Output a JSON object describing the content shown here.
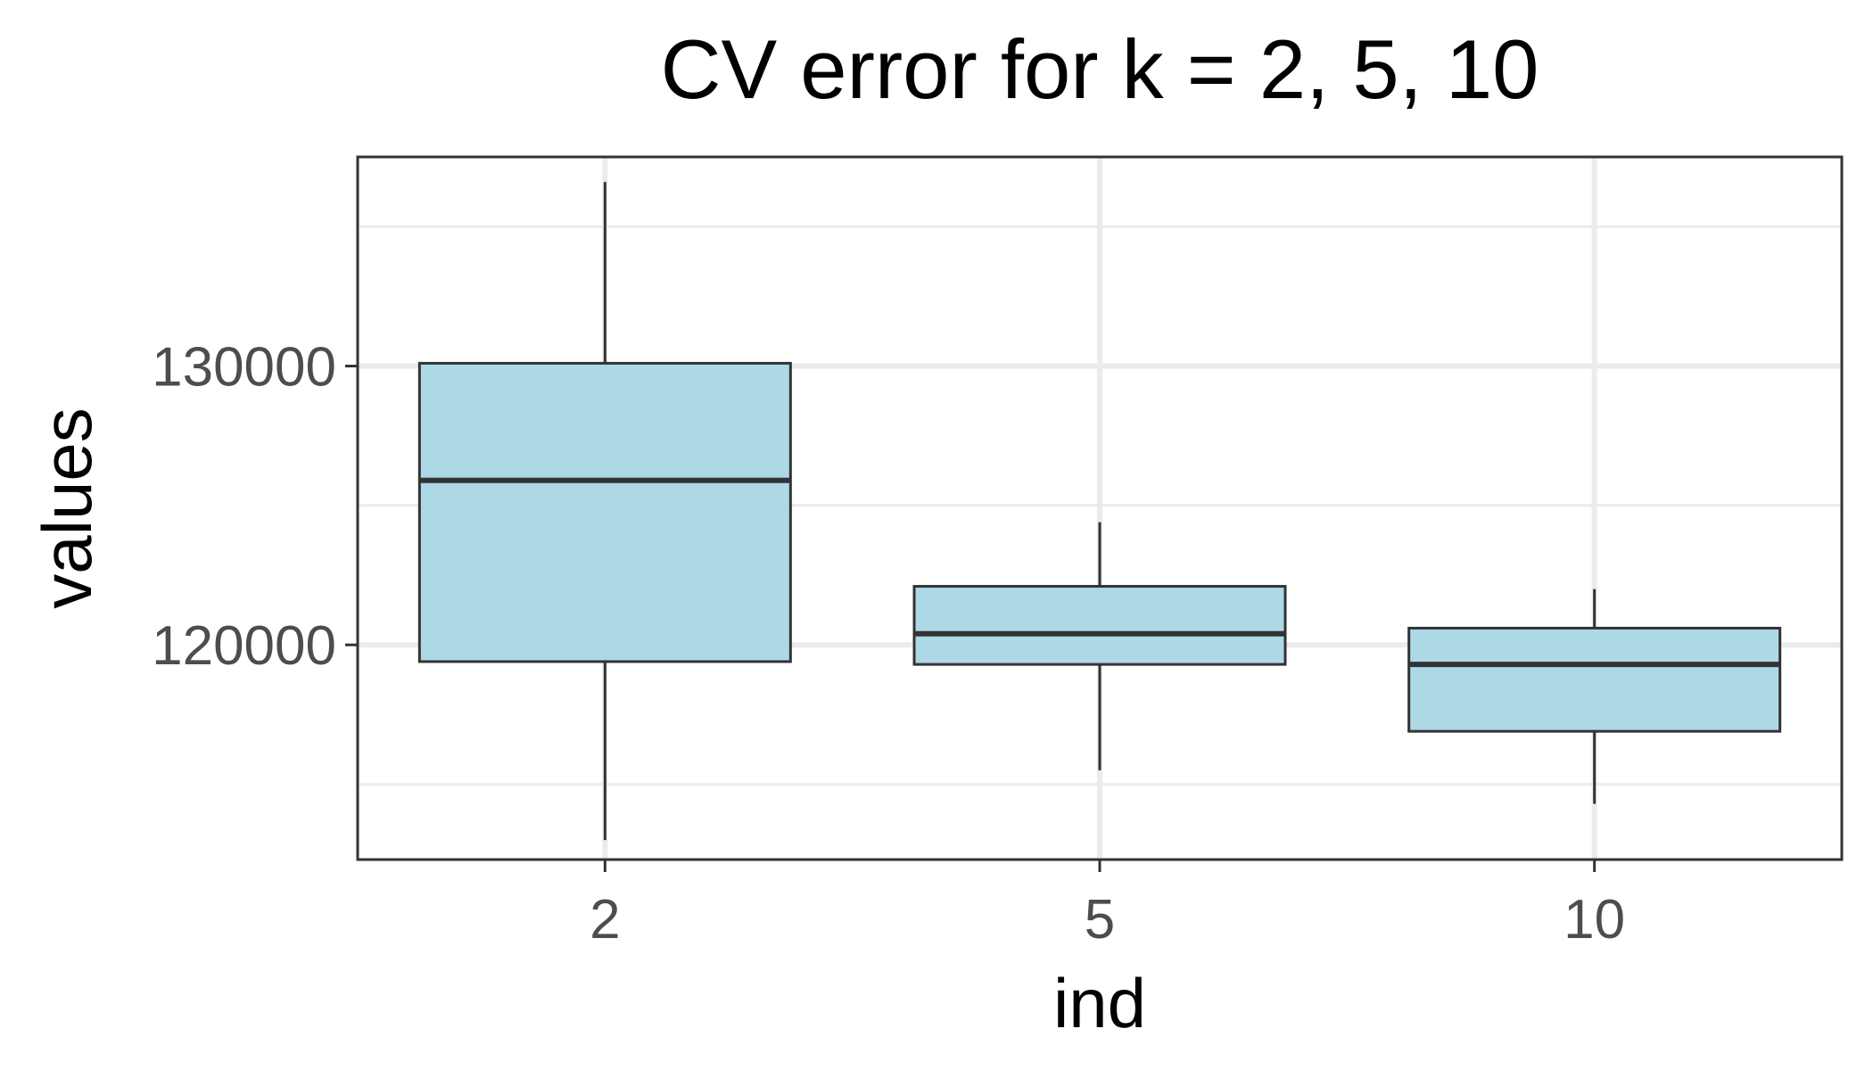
{
  "chart_data": {
    "type": "box",
    "title": "CV error for k = 2, 5, 10",
    "xlabel": "ind",
    "ylabel": "values",
    "categories": [
      "2",
      "5",
      "10"
    ],
    "ylim": [
      112300,
      137500
    ],
    "yticks": [
      {
        "value": 120000,
        "label": "120000"
      },
      {
        "value": 130000,
        "label": "130000"
      }
    ],
    "yminor": [
      115000,
      125000,
      135000
    ],
    "grid": true,
    "legend": "none",
    "fill_color": "#ADD8E6",
    "line_color": "#333333",
    "series": [
      {
        "category": "2",
        "min": 113000,
        "q1": 119400,
        "median": 125900,
        "q3": 130100,
        "max": 136600
      },
      {
        "category": "5",
        "min": 115500,
        "q1": 119300,
        "median": 120400,
        "q3": 122100,
        "max": 124400
      },
      {
        "category": "10",
        "min": 114300,
        "q1": 116900,
        "median": 119300,
        "q3": 120600,
        "max": 122000
      }
    ]
  }
}
